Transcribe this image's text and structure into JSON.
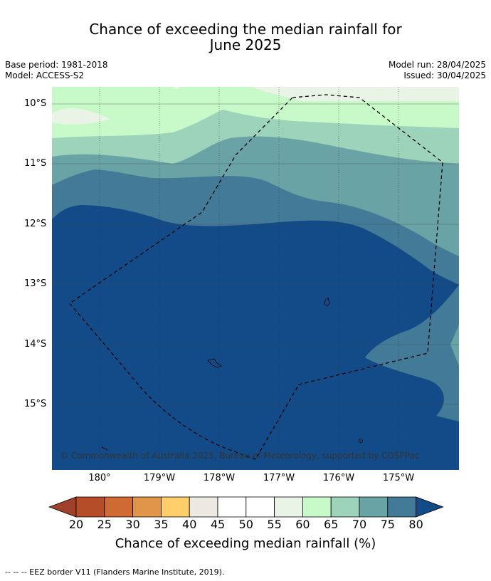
{
  "title_line1": "Chance of exceeding the median rainfall for",
  "title_line2": "June 2025",
  "base_period": "Base period: 1981-2018",
  "model": "Model: ACCESS-S2",
  "model_run": "Model run: 28/04/2025",
  "issued": "Issued: 30/04/2025",
  "lat_labels": [
    "10°S",
    "11°S",
    "12°S",
    "13°S",
    "14°S",
    "15°S"
  ],
  "lon_labels": [
    "180°",
    "179°W",
    "178°W",
    "177°W",
    "176°W",
    "175°W"
  ],
  "copyright": "© Commonwealth of Australia 2025, Bureau of Meteorology, supported by COSPPac",
  "colorbar": {
    "ticks": [
      "20",
      "25",
      "30",
      "35",
      "40",
      "45",
      "50",
      "55",
      "60",
      "65",
      "70",
      "75",
      "80"
    ],
    "colors": [
      "#a0402a",
      "#b54e28",
      "#cf6a35",
      "#e0954a",
      "#fecf6a",
      "#ede8e2",
      "#ffffff",
      "#ffffff",
      "#e9f4e6",
      "#c8f9c8",
      "#9dd2bb",
      "#6aa3a5",
      "#427a98",
      "#134b88"
    ],
    "label": "Chance of exceeding median rainfall (%)"
  },
  "footer": "--  --  -- EEZ border V11 (Flanders Marine Institute, 2019).",
  "colors": {
    "band_55_60": "#e9f4e6",
    "band_60_65": "#c8f9c8",
    "band_65_70": "#9dd2bb",
    "band_70_75": "#6aa3a5",
    "band_75_80": "#427a98",
    "band_80_plus": "#134b88"
  }
}
